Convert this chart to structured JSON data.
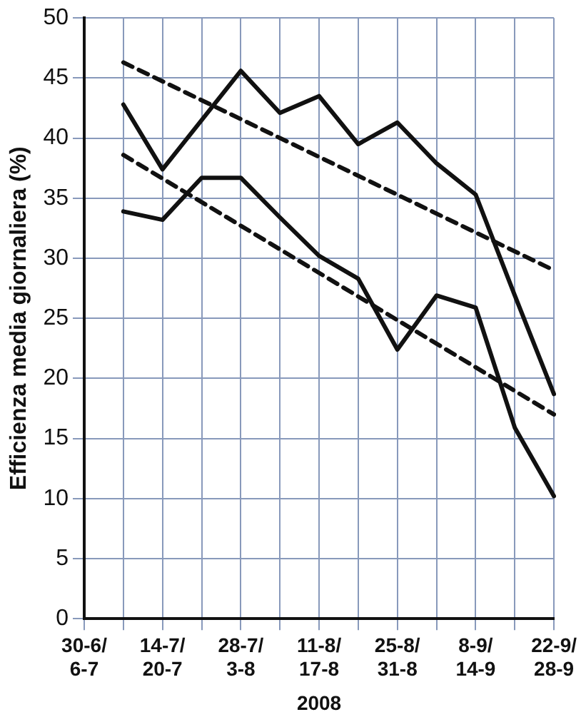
{
  "chart_data": {
    "type": "line",
    "ylabel": "Efficienza media giornaliera (%)",
    "xlabel": "2008",
    "categories": [
      "30-6/\n6-7",
      null,
      "14-7/\n20-7",
      null,
      "28-7/\n3-8",
      null,
      "11-8/\n17-8",
      null,
      "25-8/\n31-8",
      null,
      "8-9/\n14-9",
      null,
      "22-9/\n28-9"
    ],
    "series": [
      {
        "color": "#111111",
        "line_style": "solid",
        "values": [
          null,
          42.8,
          37.4,
          null,
          45.6,
          42.1,
          43.5,
          39.5,
          41.3,
          37.9,
          35.3,
          26.9,
          18.7
        ]
      },
      {
        "color": "#111111",
        "line_style": "solid",
        "values": [
          null,
          33.9,
          33.2,
          36.7,
          36.7,
          33.4,
          30.2,
          28.3,
          22.4,
          26.9,
          25.9,
          15.9,
          10.2
        ]
      },
      {
        "color": "#111111",
        "line_style": "dashed",
        "values": [
          null,
          46.3,
          null,
          null,
          null,
          null,
          null,
          null,
          null,
          null,
          null,
          null,
          29.0
        ]
      },
      {
        "color": "#111111",
        "line_style": "dashed",
        "values": [
          null,
          38.6,
          null,
          null,
          null,
          null,
          null,
          null,
          null,
          null,
          null,
          null,
          17.0
        ]
      }
    ],
    "ylim": [
      0,
      50
    ],
    "yticks": [
      0,
      5,
      10,
      15,
      20,
      25,
      30,
      35,
      40,
      45,
      50
    ],
    "grid": true,
    "legend": false,
    "marker": "none"
  }
}
